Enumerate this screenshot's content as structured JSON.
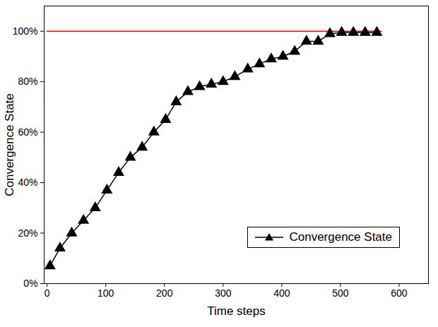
{
  "chart_data": {
    "type": "line",
    "x_label": "Time steps",
    "y_label": "Convergence State",
    "x": [
      5,
      22,
      42,
      62,
      82,
      102,
      122,
      142,
      162,
      182,
      202,
      220,
      240,
      260,
      280,
      300,
      320,
      342,
      362,
      382,
      402,
      422,
      442,
      462,
      482,
      502,
      522,
      542,
      562
    ],
    "series": [
      {
        "name": "Convergence State",
        "color": "#000000",
        "marker": "triangle",
        "line_style": "solid",
        "values": [
          7,
          14,
          20,
          25,
          30,
          37,
          44,
          50,
          54,
          60,
          65,
          72,
          76,
          78,
          79,
          80,
          82,
          85,
          87,
          89,
          90,
          92,
          96,
          96,
          99,
          99.5,
          99.5,
          99.5,
          99.5
        ]
      }
    ],
    "hlines": [
      {
        "value": 100,
        "xlim": [
          0,
          570
        ],
        "color": "#ff0000"
      }
    ],
    "xlim": [
      -5,
      650
    ],
    "xticks": [
      0,
      100,
      200,
      300,
      400,
      500,
      600
    ],
    "ylim": [
      0,
      110
    ],
    "yticks": [
      {
        "value": 0,
        "label": "0%"
      },
      {
        "value": 20,
        "label": "20%"
      },
      {
        "value": 40,
        "label": "40%"
      },
      {
        "value": 60,
        "label": "60%"
      },
      {
        "value": 80,
        "label": "80%"
      },
      {
        "value": 100,
        "label": "100%"
      }
    ],
    "legend": "lower right"
  }
}
